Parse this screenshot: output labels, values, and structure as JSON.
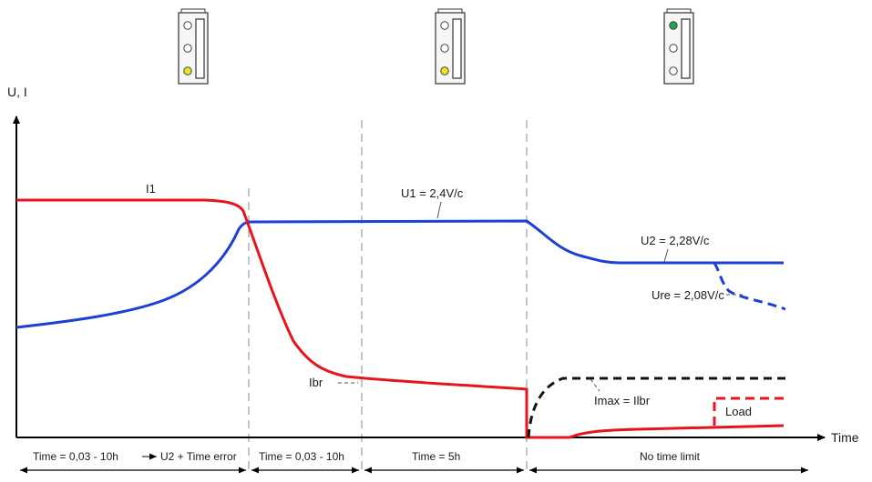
{
  "axes": {
    "y_label": "U, I",
    "x_label": "Time"
  },
  "indicators": [
    {
      "lit": "bottom",
      "color": "#f2e21b"
    },
    {
      "lit": "bottom",
      "color": "#f2e21b"
    },
    {
      "lit": "top",
      "color": "#1fa34a"
    }
  ],
  "curve_labels": {
    "i1": "I1",
    "u1": "U1 = 2,4V/c",
    "u2": "U2 = 2,28V/c",
    "ure": "Ure = 2,08V/c",
    "ibr": "Ibr",
    "imax": "Imax = Ilbr",
    "load": "Load"
  },
  "phases": [
    {
      "label": "Time = 0,03 - 10h",
      "extra": "U2 + Time error"
    },
    {
      "label": "Time = 0,03 - 10h"
    },
    {
      "label": "Time = 5h"
    },
    {
      "label": "No time limit"
    }
  ],
  "colors": {
    "current": "#e8141c",
    "voltage": "#1c3fd6",
    "imax": "#111111",
    "axis": "#000000",
    "divider": "#888888"
  }
}
